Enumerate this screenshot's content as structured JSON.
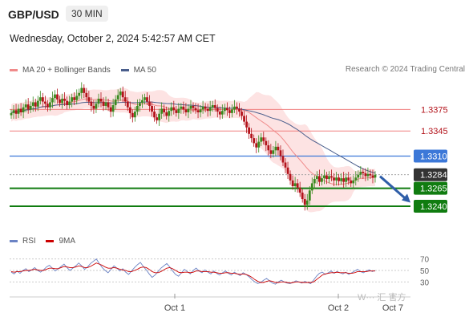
{
  "header": {
    "pair": "GBP/USD",
    "timeframe": "30 MIN"
  },
  "datetime": "Wednesday, October 2, 2024 5:42:57 AM CET",
  "legend": {
    "ma20_label": "MA 20 + Bollinger Bands",
    "ma50_label": "MA 50",
    "credit": "Research © 2024 Trading Central"
  },
  "rsi_legend": {
    "rsi_label": "RSI",
    "ma_label": "9MA"
  },
  "watermark": "W··· 汇 官方",
  "colors": {
    "up": "#3a8a1f",
    "down": "#b3131b",
    "bb_fill": "#fde3e3",
    "ma20": "#f08a8a",
    "ma50": "#4a5e8c",
    "rsi": "#6b83c4",
    "rsi_ma": "#cc0000",
    "green_level": "#107c10",
    "red_level": "#f08080",
    "blue_level": "#3c78d8",
    "current": "#333333"
  },
  "chart_data": {
    "type": "candlestick",
    "y_range": [
      1.3212,
      1.3418
    ],
    "levels": [
      {
        "value": 1.3375,
        "label": "1.3375",
        "kind": "resistance"
      },
      {
        "value": 1.3345,
        "label": "1.3345",
        "kind": "resistance"
      },
      {
        "value": 1.331,
        "label": "1.3310",
        "kind": "pivot"
      },
      {
        "value": 1.3284,
        "label": "1.3284",
        "kind": "current"
      },
      {
        "value": 1.3265,
        "label": "1.3265",
        "kind": "support"
      },
      {
        "value": 1.324,
        "label": "1.3240",
        "kind": "support"
      }
    ],
    "x_labels": [
      "Oct 1",
      "Oct 2",
      "Oct 7"
    ],
    "candle_closes": [
      1.337,
      1.3374,
      1.3369,
      1.3376,
      1.3371,
      1.3378,
      1.3382,
      1.3375,
      1.338,
      1.3385,
      1.3379,
      1.3387,
      1.3392,
      1.3386,
      1.3383,
      1.3378,
      1.3385,
      1.3391,
      1.3396,
      1.3389,
      1.3384,
      1.339,
      1.3387,
      1.3381,
      1.3386,
      1.3392,
      1.3388,
      1.3394,
      1.3398,
      1.3405,
      1.3398,
      1.3392,
      1.3386,
      1.338,
      1.3376,
      1.3383,
      1.339,
      1.3386,
      1.338,
      1.3385,
      1.3378,
      1.3372,
      1.3381,
      1.3389,
      1.3395,
      1.34,
      1.3392,
      1.3386,
      1.3378,
      1.337,
      1.3364,
      1.3372,
      1.338,
      1.3384,
      1.3388,
      1.3392,
      1.3386,
      1.338,
      1.3372,
      1.3364,
      1.336,
      1.3369,
      1.3376,
      1.3371,
      1.3366,
      1.3373,
      1.3378,
      1.3374,
      1.337,
      1.3376,
      1.3379,
      1.3375,
      1.3371,
      1.3376,
      1.338,
      1.3377,
      1.3374,
      1.3371,
      1.3375,
      1.3379,
      1.3376,
      1.3373,
      1.3378,
      1.3381,
      1.3377,
      1.3372,
      1.3368,
      1.3373,
      1.3377,
      1.3374,
      1.337,
      1.3375,
      1.3379,
      1.3376,
      1.3372,
      1.3366,
      1.3358,
      1.335,
      1.3341,
      1.3335,
      1.3328,
      1.3322,
      1.333,
      1.3336,
      1.3331,
      1.3325,
      1.3318,
      1.3313,
      1.3318,
      1.3323,
      1.3318,
      1.331,
      1.3301,
      1.3294,
      1.3285,
      1.3276,
      1.3268,
      1.3272,
      1.3266,
      1.3259,
      1.325,
      1.3242,
      1.3248,
      1.3262,
      1.3272,
      1.3278,
      1.3282,
      1.3274,
      1.3279,
      1.3283,
      1.3278,
      1.3282,
      1.328,
      1.3276,
      1.328,
      1.3275,
      1.3279,
      1.3274,
      1.328,
      1.3276,
      1.3272,
      1.3276,
      1.328,
      1.3284,
      1.3288,
      1.3286,
      1.3282,
      1.3285,
      1.3283,
      1.328,
      1.3284
    ],
    "rsi": {
      "ticks": [
        70,
        50,
        30
      ],
      "y_range": [
        15,
        85
      ],
      "values": [
        47,
        44,
        49,
        45,
        50,
        53,
        48,
        51,
        55,
        50,
        47,
        51,
        56,
        59,
        54,
        49,
        53,
        57,
        61,
        55,
        50,
        54,
        58,
        63,
        58,
        52,
        56,
        62,
        66,
        70,
        62,
        55,
        50,
        46,
        52,
        58,
        54,
        49,
        53,
        47,
        43,
        49,
        55,
        60,
        64,
        57,
        51,
        44,
        38,
        42,
        48,
        54,
        58,
        62,
        56,
        49,
        43,
        40,
        46,
        52,
        48,
        44,
        50,
        54,
        49,
        46,
        51,
        47,
        44,
        49,
        45,
        42,
        46,
        49,
        45,
        42,
        47,
        44,
        41,
        46,
        43,
        39,
        34,
        30,
        27,
        29,
        33,
        36,
        32,
        28,
        26,
        30,
        33,
        30,
        28,
        27,
        29,
        32,
        30,
        28,
        31,
        29,
        27,
        33,
        40,
        45,
        47,
        43,
        46,
        49,
        45,
        48,
        46,
        44,
        47,
        43,
        46,
        49,
        52,
        48,
        46,
        49,
        51,
        48,
        50
      ],
      "ma_values": [
        48,
        47,
        48,
        48,
        49,
        50,
        50,
        51,
        52,
        51,
        50,
        50,
        52,
        54,
        54,
        53,
        53,
        55,
        57,
        56,
        55,
        55,
        56,
        58,
        57,
        55,
        55,
        57,
        60,
        63,
        61,
        59,
        56,
        54,
        54,
        55,
        54,
        52,
        51,
        50,
        48,
        48,
        50,
        52,
        55,
        56,
        55,
        52,
        48,
        46,
        46,
        48,
        51,
        54,
        55,
        53,
        50,
        47,
        46,
        47,
        47,
        46,
        47,
        49,
        49,
        48,
        48,
        48,
        47,
        47,
        46,
        45,
        45,
        46,
        46,
        45,
        45,
        44,
        43,
        44,
        43,
        41,
        38,
        34,
        31,
        29,
        29,
        31,
        32,
        31,
        29,
        29,
        30,
        30,
        29,
        28,
        29,
        30,
        30,
        29,
        29,
        29,
        29,
        30,
        34,
        38,
        42,
        44,
        45,
        46,
        46,
        47,
        46,
        46,
        46,
        45,
        45,
        46,
        48,
        48,
        48,
        48,
        49,
        49,
        49
      ]
    }
  }
}
